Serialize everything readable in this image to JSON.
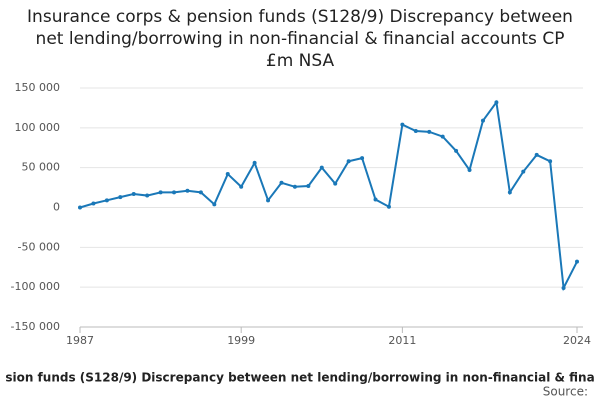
{
  "chart_data": {
    "type": "line",
    "title": "Insurance corps & pension funds (S128/9) Discrepancy between net lending/borrowing in non-financial & financial accounts CP £m NSA",
    "legend_text": "sion funds (S128/9) Discrepancy between net lending/borrowing in non-financial & fina",
    "source": "Source:",
    "x": [
      1987,
      1988,
      1989,
      1990,
      1991,
      1992,
      1993,
      1994,
      1995,
      1996,
      1997,
      1998,
      1999,
      2000,
      2001,
      2002,
      2003,
      2004,
      2005,
      2006,
      2007,
      2008,
      2009,
      2010,
      2011,
      2012,
      2013,
      2014,
      2015,
      2016,
      2017,
      2018,
      2019,
      2020,
      2021,
      2022,
      2023,
      2024
    ],
    "series": [
      {
        "color": "#1a78b8",
        "values": [
          0,
          5000,
          9000,
          13000,
          17000,
          15000,
          19000,
          19000,
          21000,
          19000,
          4000,
          42000,
          26000,
          56000,
          9000,
          31000,
          26000,
          27000,
          50000,
          30000,
          58000,
          62000,
          10000,
          1000,
          104000,
          96000,
          95000,
          89000,
          71000,
          47000,
          109000,
          132000,
          19000,
          45000,
          66000,
          58000,
          -101000,
          -68000
        ]
      }
    ],
    "xlim": [
      1987,
      2024
    ],
    "xticks": [
      1987,
      1999,
      2011,
      2024
    ],
    "ylim": [
      -150000,
      150000
    ],
    "yticks": [
      {
        "value": -150000,
        "label": "-150 000"
      },
      {
        "value": -100000,
        "label": "-100 000"
      },
      {
        "value": -50000,
        "label": "-50 000"
      },
      0,
      {
        "value": 50000,
        "label": "50 000"
      },
      {
        "value": 100000,
        "label": "100 000"
      },
      {
        "value": 150000,
        "label": "150 000"
      }
    ],
    "grid": true
  }
}
